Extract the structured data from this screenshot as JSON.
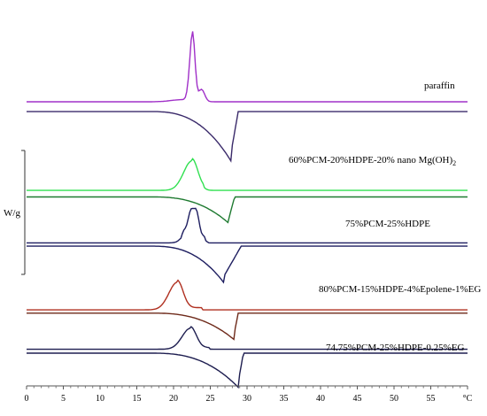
{
  "chart_data": {
    "type": "line",
    "title": "",
    "xlabel": "°C",
    "ylabel": "W/g",
    "xlim": [
      0,
      60
    ],
    "x_ticks": [
      "0",
      "5",
      "10",
      "15",
      "20",
      "25",
      "30",
      "35",
      "40",
      "45",
      "50",
      "55",
      "°C"
    ],
    "grid": false,
    "series": [
      {
        "name": "paraffin",
        "color": "#a030c8",
        "heating_color": "#3a2a6a",
        "cooling": {
          "baseline_start": [
            0,
            4.45
          ],
          "baseline_end": [
            60,
            4.45
          ],
          "peak": [
            22.6,
            5.5
          ],
          "onset": [
            21.5
          ],
          "end": [
            24.5
          ],
          "shape": "sharp"
        },
        "heating": {
          "baseline_start": [
            0,
            4.3
          ],
          "baseline_end": [
            60,
            4.3
          ],
          "peak": [
            27.8,
            3.55
          ],
          "onset": [
            19
          ],
          "end": [
            28.8
          ],
          "shape": "skewed"
        }
      },
      {
        "name": "60%PCM-20%HDPE-20% nano Mg(OH)2",
        "color": "#30e050",
        "heating_color": "#1e7a30",
        "cooling": {
          "baseline_start": [
            0,
            3.1
          ],
          "baseline_end": [
            60,
            3.1
          ],
          "peak": [
            22.5,
            3.55
          ],
          "end": [
            24.2
          ],
          "shape": "broad"
        },
        "heating": {
          "baseline_start": [
            0,
            3.0
          ],
          "baseline_end": [
            60,
            3.0
          ],
          "peak": [
            27.5,
            2.6
          ],
          "end": [
            28.3
          ],
          "shape": "skewed"
        }
      },
      {
        "name": "75%PCM-25%HDPE",
        "color": "#1e1e60",
        "heating_color": "#1e1e60",
        "cooling": {
          "baseline_start": [
            0,
            2.3
          ],
          "baseline_end": [
            60,
            2.3
          ],
          "peak": [
            22.8,
            2.85
          ],
          "end": [
            24.8
          ],
          "shape": "jagged"
        },
        "heating": {
          "baseline_start": [
            0,
            2.25
          ],
          "baseline_end": [
            60,
            2.25
          ],
          "peak": [
            26.8,
            1.7
          ],
          "end": [
            29.2
          ],
          "shape": "skewed"
        }
      },
      {
        "name": "80%PCM-15%HDPE-4%Epolene-1%EG",
        "color": "#b03020",
        "heating_color": "#6e2a1a",
        "cooling": {
          "baseline_start": [
            0,
            1.28
          ],
          "baseline_end": [
            60,
            1.28
          ],
          "peak": [
            20.5,
            1.7
          ],
          "end": [
            24.0
          ],
          "shape": "broad"
        },
        "heating": {
          "baseline_start": [
            0,
            1.23
          ],
          "baseline_end": [
            60,
            1.23
          ],
          "peak": [
            28.2,
            0.83
          ],
          "end": [
            28.8
          ],
          "shape": "skewed"
        }
      },
      {
        "name": "74.75%PCM-25%HDPE-0.25%EG",
        "color": "#1e1e50",
        "heating_color": "#1e1e50",
        "cooling": {
          "baseline_start": [
            0,
            0.68
          ],
          "baseline_end": [
            60,
            0.68
          ],
          "peak": [
            22.3,
            1.0
          ],
          "end": [
            25.0
          ],
          "shape": "broad"
        },
        "heating": {
          "baseline_start": [
            0,
            0.62
          ],
          "baseline_end": [
            60,
            0.62
          ],
          "peak": [
            28.8,
            0.1
          ],
          "end": [
            29.5
          ],
          "shape": "skewed"
        }
      }
    ],
    "labels": {
      "paraffin": "paraffin",
      "s2": "60%PCM-20%HDPE-20% nano Mg(OH)",
      "s2_sub": "2",
      "s3": "75%PCM-25%HDPE",
      "s4": "80%PCM-15%HDPE-4%Epolene-1%EG",
      "s5": "74.75%PCM-25%HDPE-0.25%EG"
    }
  }
}
